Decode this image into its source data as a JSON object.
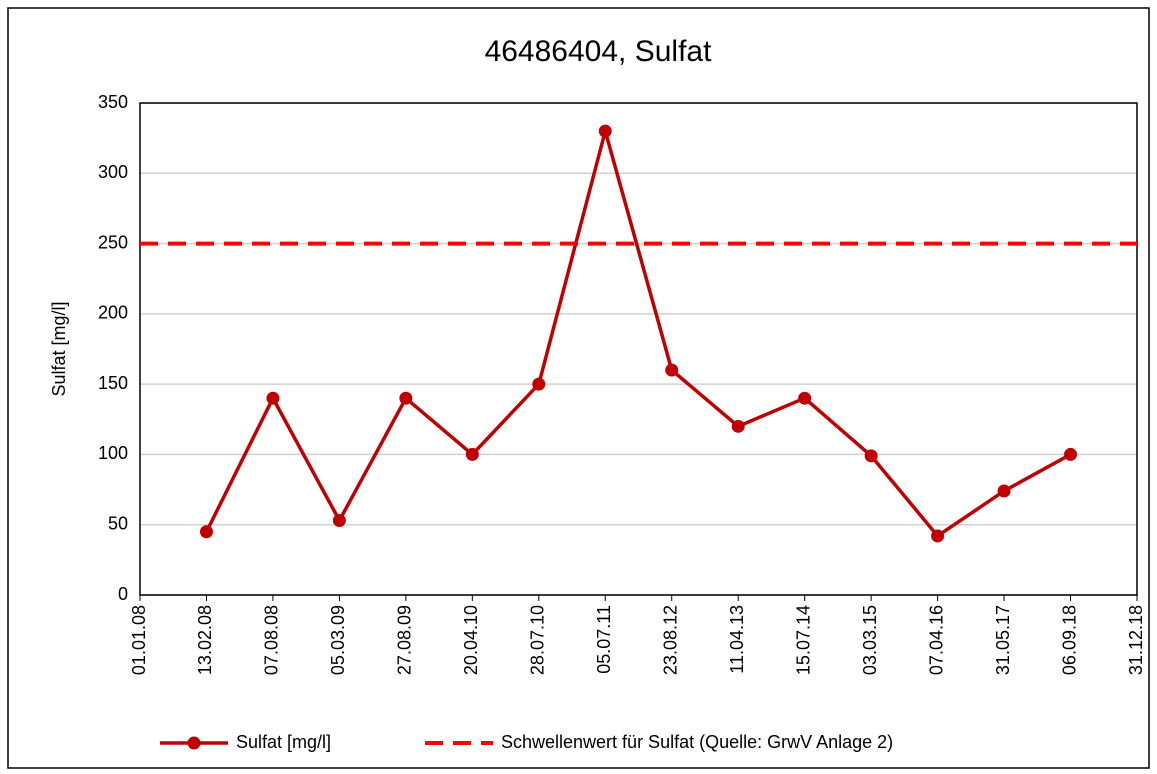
{
  "chart_data": {
    "type": "line",
    "title": "46486404, Sulfat",
    "y_label": "Sulfat [mg/l]",
    "categories": [
      "01.01.08",
      "13.02.08",
      "07.08.08",
      "05.03.09",
      "27.08.09",
      "20.04.10",
      "28.07.10",
      "05.07.11",
      "23.08.12",
      "11.04.13",
      "15.07.14",
      "03.03.15",
      "07.04.16",
      "31.05.17",
      "06.09.18",
      "31.12.18"
    ],
    "series": [
      {
        "name": "Sulfat [mg/l]",
        "color": "#c00000",
        "style": "solid",
        "marker": true,
        "values": [
          null,
          45,
          140,
          53,
          140,
          100,
          150,
          330,
          160,
          120,
          140,
          99,
          42,
          74,
          100,
          null
        ]
      },
      {
        "name": "Schwellenwert für Sulfat (Quelle: GrwV Anlage 2)",
        "color": "#ff0000",
        "style": "dashed",
        "marker": false,
        "values": [
          250,
          250,
          250,
          250,
          250,
          250,
          250,
          250,
          250,
          250,
          250,
          250,
          250,
          250,
          250,
          250
        ]
      }
    ],
    "ylim": [
      0,
      350
    ],
    "yticks": [
      0,
      50,
      100,
      150,
      200,
      250,
      300,
      350
    ],
    "grid": true,
    "legend": "bottom"
  }
}
